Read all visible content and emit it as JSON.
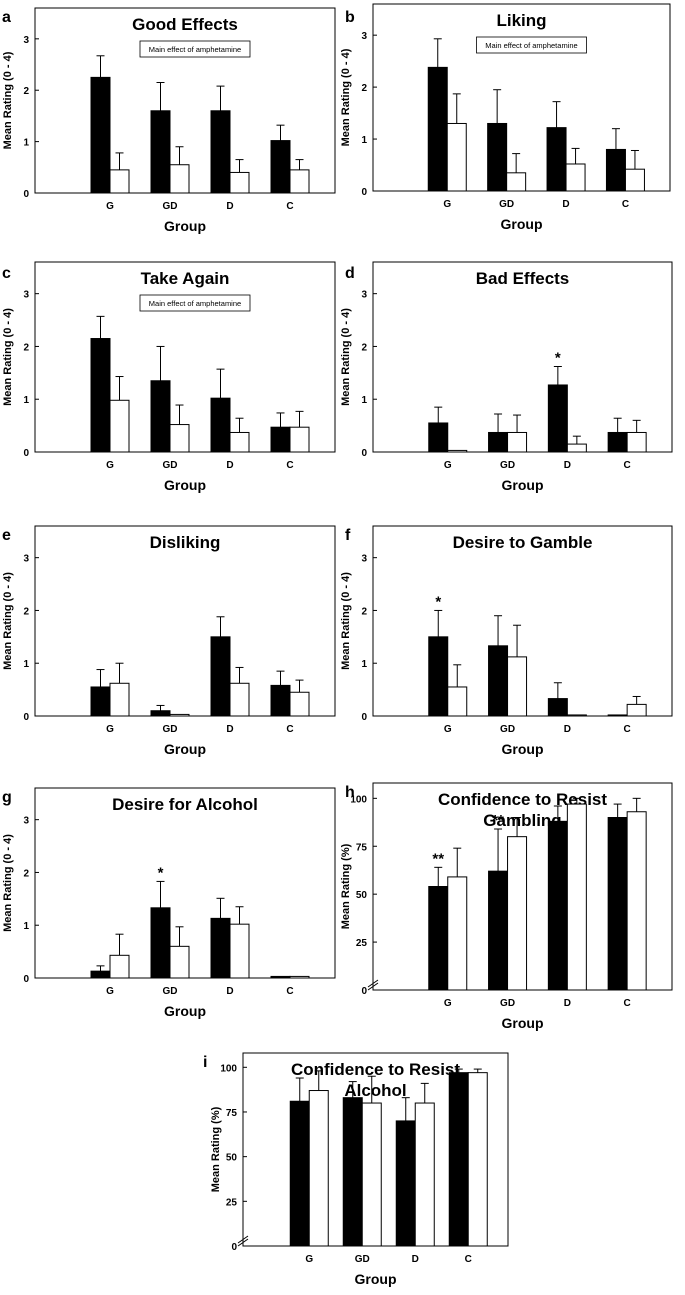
{
  "chart_data": [
    {
      "panel": "a",
      "type": "bar",
      "title": "Good Effects",
      "annotation": "Main effect of amphetamine",
      "ylabel": "Mean Rating (0 - 4)",
      "xlabel": "Group",
      "ylim": [
        0,
        3.6
      ],
      "yticks": [
        "0",
        "1",
        "2",
        "3"
      ],
      "ytick_values": [
        0,
        1,
        2,
        3
      ],
      "categories": [
        "G",
        "GD",
        "D",
        "C"
      ],
      "series": [
        {
          "values": [
            2.25,
            1.6,
            1.6,
            1.02
          ],
          "errors": [
            0.42,
            0.55,
            0.48,
            0.3
          ]
        },
        {
          "values": [
            0.45,
            0.55,
            0.4,
            0.45
          ],
          "errors": [
            0.33,
            0.35,
            0.25,
            0.2
          ]
        }
      ],
      "stars": []
    },
    {
      "panel": "b",
      "type": "bar",
      "title": "Liking",
      "annotation": "Main effect of amphetamine",
      "ylabel": "Mean Rating (0 - 4)",
      "xlabel": "Group",
      "ylim": [
        0,
        3.6
      ],
      "yticks": [
        "0",
        "1",
        "2",
        "3"
      ],
      "ytick_values": [
        0,
        1,
        2,
        3
      ],
      "categories": [
        "G",
        "GD",
        "D",
        "C"
      ],
      "series": [
        {
          "values": [
            2.38,
            1.3,
            1.22,
            0.8
          ],
          "errors": [
            0.55,
            0.65,
            0.5,
            0.4
          ]
        },
        {
          "values": [
            1.3,
            0.35,
            0.52,
            0.42
          ],
          "errors": [
            0.57,
            0.37,
            0.3,
            0.36
          ]
        }
      ],
      "stars": []
    },
    {
      "panel": "c",
      "type": "bar",
      "title": "Take Again",
      "annotation": "Main effect of amphetamine",
      "ylabel": "Mean Rating (0 - 4)",
      "xlabel": "Group",
      "ylim": [
        0,
        3.6
      ],
      "yticks": [
        "0",
        "1",
        "2",
        "3"
      ],
      "ytick_values": [
        0,
        1,
        2,
        3
      ],
      "categories": [
        "G",
        "GD",
        "D",
        "C"
      ],
      "series": [
        {
          "values": [
            2.15,
            1.35,
            1.02,
            0.47
          ],
          "errors": [
            0.42,
            0.65,
            0.55,
            0.27
          ]
        },
        {
          "values": [
            0.98,
            0.52,
            0.37,
            0.47
          ],
          "errors": [
            0.45,
            0.37,
            0.27,
            0.3
          ]
        }
      ],
      "stars": []
    },
    {
      "panel": "d",
      "type": "bar",
      "title": "Bad Effects",
      "annotation": "",
      "ylabel": "Mean Rating (0 - 4)",
      "xlabel": "Group",
      "ylim": [
        0,
        3.6
      ],
      "yticks": [
        "0",
        "1",
        "2",
        "3"
      ],
      "ytick_values": [
        0,
        1,
        2,
        3
      ],
      "categories": [
        "G",
        "GD",
        "D",
        "C"
      ],
      "series": [
        {
          "values": [
            0.55,
            0.37,
            1.27,
            0.37
          ],
          "errors": [
            0.3,
            0.35,
            0.35,
            0.27
          ]
        },
        {
          "values": [
            0.03,
            0.37,
            0.15,
            0.37
          ],
          "errors": [
            0,
            0.33,
            0.15,
            0.23
          ]
        }
      ],
      "stars": [
        {
          "category": "D",
          "series": 0,
          "text": "*"
        }
      ]
    },
    {
      "panel": "e",
      "type": "bar",
      "title": "Disliking",
      "annotation": "",
      "ylabel": "Mean Rating (0 - 4)",
      "xlabel": "Group",
      "ylim": [
        0,
        3.6
      ],
      "yticks": [
        "0",
        "1",
        "2",
        "3"
      ],
      "ytick_values": [
        0,
        1,
        2,
        3
      ],
      "categories": [
        "G",
        "GD",
        "D",
        "C"
      ],
      "series": [
        {
          "values": [
            0.55,
            0.1,
            1.5,
            0.58
          ],
          "errors": [
            0.33,
            0.1,
            0.38,
            0.27
          ]
        },
        {
          "values": [
            0.62,
            0.03,
            0.62,
            0.45
          ],
          "errors": [
            0.38,
            0,
            0.3,
            0.23
          ]
        }
      ],
      "stars": []
    },
    {
      "panel": "f",
      "type": "bar",
      "title": "Desire to Gamble",
      "annotation": "",
      "ylabel": "Mean Rating (0 - 4)",
      "xlabel": "Group",
      "ylim": [
        0,
        3.6
      ],
      "yticks": [
        "0",
        "1",
        "2",
        "3"
      ],
      "ytick_values": [
        0,
        1,
        2,
        3
      ],
      "categories": [
        "G",
        "GD",
        "D",
        "C"
      ],
      "series": [
        {
          "values": [
            1.5,
            1.33,
            0.33,
            0.02
          ],
          "errors": [
            0.5,
            0.57,
            0.3,
            0
          ]
        },
        {
          "values": [
            0.55,
            1.12,
            0.02,
            0.22
          ],
          "errors": [
            0.42,
            0.6,
            0,
            0.15
          ]
        }
      ],
      "stars": [
        {
          "category": "G",
          "series": 0,
          "text": "*"
        }
      ]
    },
    {
      "panel": "g",
      "type": "bar",
      "title": "Desire for Alcohol",
      "annotation": "",
      "ylabel": "Mean Rating (0 - 4)",
      "xlabel": "Group",
      "ylim": [
        0,
        3.6
      ],
      "yticks": [
        "0",
        "1",
        "2",
        "3"
      ],
      "ytick_values": [
        0,
        1,
        2,
        3
      ],
      "categories": [
        "G",
        "GD",
        "D",
        "C"
      ],
      "series": [
        {
          "values": [
            0.13,
            1.33,
            1.13,
            0.03
          ],
          "errors": [
            0.1,
            0.5,
            0.38,
            0
          ]
        },
        {
          "values": [
            0.43,
            0.6,
            1.02,
            0.03
          ],
          "errors": [
            0.4,
            0.37,
            0.33,
            0
          ]
        }
      ],
      "stars": [
        {
          "category": "GD",
          "series": 0,
          "text": "*"
        }
      ]
    },
    {
      "panel": "h",
      "type": "bar",
      "title": "Confidence to Resist Gambling",
      "annotation": "",
      "ylabel": "Mean Rating (%)",
      "xlabel": "Group",
      "ylim": [
        0,
        108
      ],
      "yticks": [
        "0",
        "25",
        "50",
        "75",
        "100"
      ],
      "ytick_values": [
        0,
        25,
        50,
        75,
        100
      ],
      "axis_break": true,
      "categories": [
        "G",
        "GD",
        "D",
        "C"
      ],
      "series": [
        {
          "values": [
            54,
            62,
            88,
            90
          ],
          "errors": [
            10,
            22,
            8,
            7
          ]
        },
        {
          "values": [
            59,
            80,
            97,
            93
          ],
          "errors": [
            15,
            10,
            3,
            7
          ]
        }
      ],
      "stars": [
        {
          "category": "G",
          "series": 0,
          "text": "**"
        },
        {
          "category": "GD",
          "series": 0,
          "text": "**"
        }
      ]
    },
    {
      "panel": "i",
      "type": "bar",
      "title": "Confidence to Resist Alcohol",
      "annotation": "",
      "ylabel": "Mean Rating (%)",
      "xlabel": "Group",
      "ylim": [
        0,
        108
      ],
      "yticks": [
        "0",
        "25",
        "50",
        "75",
        "100"
      ],
      "ytick_values": [
        0,
        25,
        50,
        75,
        100
      ],
      "axis_break": true,
      "categories": [
        "G",
        "GD",
        "D",
        "C"
      ],
      "series": [
        {
          "values": [
            81,
            83,
            70,
            97
          ],
          "errors": [
            13,
            9,
            13,
            2
          ]
        },
        {
          "values": [
            87,
            80,
            80,
            97
          ],
          "errors": [
            11,
            15,
            11,
            2
          ]
        }
      ],
      "stars": []
    }
  ]
}
